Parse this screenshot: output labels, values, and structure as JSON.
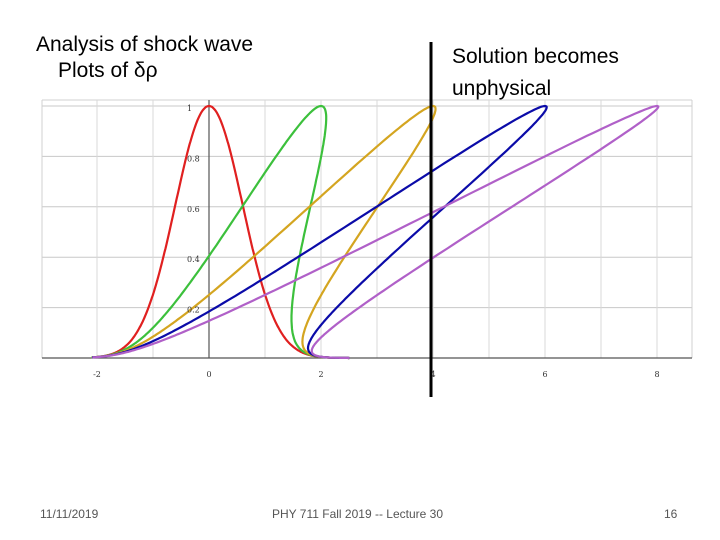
{
  "slide": {
    "title_line1": "Analysis of shock wave",
    "title_line2_prefix": "Plots of ",
    "title_line2_symbol": "δρ",
    "annotation_line1": "Solution becomes",
    "annotation_line2": "unphysical",
    "footer_date": "11/11/2019",
    "footer_course": "PHY 711 Fall 2019 -- Lecture 30",
    "footer_page": "16"
  },
  "chart_data": {
    "type": "line",
    "title": "",
    "xlabel": "",
    "ylabel": "",
    "xlim": [
      -2.3,
      8.3
    ],
    "ylim": [
      0,
      1.0
    ],
    "x_ticks": [
      -2,
      0,
      2,
      4,
      6,
      8
    ],
    "x_tick_labels": [
      "-2",
      "0",
      "2",
      "4",
      "6",
      "8"
    ],
    "y_ticks": [
      0.2,
      0.4,
      0.6,
      0.8,
      1.0
    ],
    "y_tick_labels": [
      "0.2",
      "0.4",
      "0.6",
      "0.8",
      "1"
    ],
    "grid": true,
    "annotation_vertical_line_x": 4,
    "series": [
      {
        "color": "#e02020",
        "shift": 0
      },
      {
        "color": "#3cc03c",
        "shift": 2
      },
      {
        "color": "#d4a520",
        "shift": 4
      },
      {
        "color": "#0b0ba8",
        "shift": 6
      },
      {
        "color": "#b060c8",
        "shift": 8
      }
    ],
    "curve_description": "shifted gaussian profile x = s*A + x0*... with peak at 1"
  }
}
